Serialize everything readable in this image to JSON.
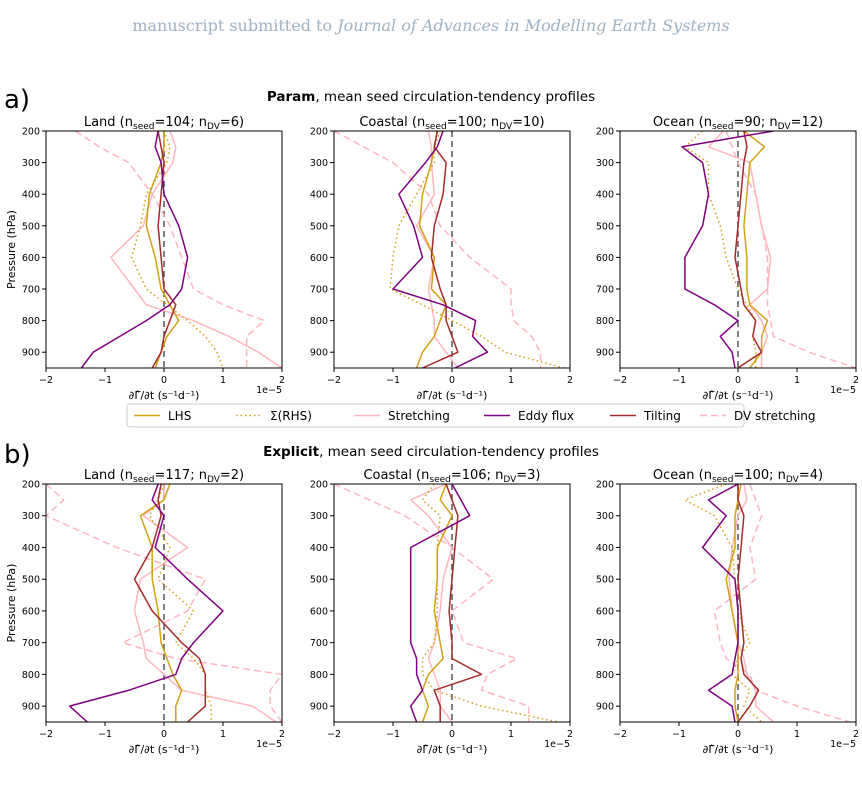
{
  "header": {
    "prefix": "manuscript submitted to ",
    "journal": "Journal of Advances in Modelling Earth Systems"
  },
  "legend": [
    {
      "name": "LHS",
      "color": "#d4a017",
      "dash": ""
    },
    {
      "name": "Σ(RHS)",
      "color": "#d4a017",
      "dash": "1.5,3"
    },
    {
      "name": "Stretching",
      "color": "#ffb6c1",
      "dash": ""
    },
    {
      "name": "Eddy flux",
      "color": "#800080",
      "dash": ""
    },
    {
      "name": "Tilting",
      "color": "#a52a2a",
      "dash": ""
    },
    {
      "name": "DV stretching",
      "color": "#ffb6c1",
      "dash": "7,4"
    }
  ],
  "chart_data": [
    {
      "row": "a",
      "row_label": "a)",
      "row_title_bold": "Param",
      "row_title_rest": ", mean seed circulation-tendency profiles",
      "panels": [
        {
          "type": "line",
          "region": "Land",
          "n_seed": "104",
          "n_dv": "6",
          "xlabel": "∂Γ̂/∂t (s⁻¹d⁻¹)",
          "ylabel": "Pressure (hPa)",
          "x_offset": "1e−5",
          "xlim": [
            -2,
            2
          ],
          "ylim": [
            950,
            200
          ],
          "xticks": [
            "−2",
            "−1",
            "0",
            "1",
            "2"
          ],
          "yticks": [
            200,
            300,
            400,
            500,
            600,
            700,
            800,
            900
          ],
          "pressure": [
            200,
            250,
            300,
            400,
            500,
            600,
            700,
            750,
            800,
            850,
            900,
            950
          ],
          "series": {
            "LHS": [
              0.0,
              0.0,
              -0.05,
              -0.25,
              -0.3,
              -0.15,
              -0.05,
              0.1,
              0.25,
              0.05,
              -0.05,
              -0.15
            ],
            "Σ(RHS)": [
              0.0,
              0.1,
              0.05,
              -0.3,
              -0.4,
              -0.55,
              -0.3,
              0.05,
              0.4,
              0.7,
              0.9,
              1.0
            ],
            "Stretching": [
              0.1,
              0.2,
              0.15,
              -0.2,
              -0.35,
              -0.9,
              -0.5,
              -0.3,
              0.5,
              1.1,
              1.6,
              2.0
            ],
            "Eddy flux": [
              -0.1,
              -0.15,
              -0.05,
              0.0,
              0.25,
              0.4,
              0.3,
              0.1,
              -0.3,
              -0.75,
              -1.2,
              -1.4
            ],
            "Tilting": [
              -0.1,
              -0.05,
              0.0,
              -0.05,
              -0.1,
              -0.05,
              0.0,
              0.2,
              0.1,
              0.0,
              -0.05,
              -0.2
            ],
            "DV stretching": [
              -1.5,
              -1.1,
              -0.6,
              -0.2,
              0.1,
              0.3,
              0.5,
              1.0,
              1.7,
              1.4,
              1.4,
              1.4
            ]
          }
        },
        {
          "type": "line",
          "region": "Coastal",
          "n_seed": "100",
          "n_dv": "10",
          "xlabel": "∂Γ̂/∂t (s⁻¹d⁻¹)",
          "ylabel": "",
          "x_offset": "",
          "xlim": [
            -2,
            2
          ],
          "ylim": [
            950,
            200
          ],
          "xticks": [
            "−2",
            "−1",
            "0",
            "1",
            "2"
          ],
          "yticks": [
            200,
            300,
            400,
            500,
            600,
            700,
            800,
            900
          ],
          "pressure": [
            200,
            250,
            300,
            400,
            500,
            600,
            700,
            750,
            800,
            850,
            900,
            950
          ],
          "series": {
            "LHS": [
              -0.25,
              -0.3,
              -0.35,
              -0.5,
              -0.55,
              -0.3,
              -0.35,
              -0.1,
              -0.2,
              -0.3,
              -0.5,
              -0.6
            ],
            "Σ(RHS)": [
              -0.2,
              -0.3,
              -0.3,
              -0.6,
              -0.9,
              -1.0,
              -1.05,
              -0.5,
              0.0,
              0.5,
              0.9,
              1.9
            ],
            "Stretching": [
              -0.4,
              -0.35,
              -0.35,
              -0.3,
              -0.6,
              -0.3,
              -0.4,
              -0.35,
              -0.3,
              -0.3,
              -0.1,
              0.1
            ],
            "Eddy flux": [
              -0.15,
              -0.25,
              -0.45,
              -0.9,
              -0.65,
              -0.5,
              -1.0,
              -0.15,
              0.4,
              0.35,
              0.6,
              0.05
            ],
            "Tilting": [
              -0.25,
              -0.3,
              -0.1,
              -0.15,
              -0.3,
              -0.35,
              -0.2,
              -0.1,
              -0.1,
              0.0,
              0.1,
              -0.5
            ],
            "DV stretching": [
              -2.0,
              -1.5,
              -1.0,
              -0.4,
              -0.2,
              0.3,
              1.0,
              1.0,
              1.05,
              1.35,
              1.5,
              1.5
            ]
          }
        },
        {
          "type": "line",
          "region": "Ocean",
          "n_seed": "90",
          "n_dv": "12",
          "xlabel": "∂Γ̂/∂t (s⁻¹d⁻¹)",
          "ylabel": "",
          "x_offset": "1e−5",
          "xlim": [
            -2,
            2
          ],
          "ylim": [
            950,
            200
          ],
          "xticks": [
            "−2",
            "−1",
            "0",
            "1",
            "2"
          ],
          "yticks": [
            200,
            300,
            400,
            500,
            600,
            700,
            800,
            900
          ],
          "pressure": [
            200,
            250,
            300,
            400,
            500,
            600,
            700,
            750,
            800,
            850,
            900,
            950
          ],
          "series": {
            "LHS": [
              0.1,
              0.45,
              0.2,
              0.15,
              0.1,
              0.15,
              0.15,
              0.2,
              0.5,
              0.4,
              0.4,
              0.2
            ],
            "Σ(RHS)": [
              -0.6,
              -0.9,
              -0.5,
              -0.5,
              -0.3,
              -0.2,
              0.0,
              0.15,
              0.3,
              0.25,
              0.3,
              0.3
            ],
            "Stretching": [
              -0.25,
              -0.5,
              0.2,
              0.3,
              0.4,
              0.55,
              0.5,
              0.2,
              0.4,
              0.5,
              0.4,
              0.4
            ],
            "Eddy flux": [
              0.6,
              -0.95,
              -0.6,
              -0.5,
              -0.6,
              -0.9,
              -0.9,
              -0.4,
              0.0,
              -0.3,
              -0.1,
              -0.05
            ],
            "Tilting": [
              0.1,
              0.15,
              0.1,
              0.05,
              0.0,
              -0.05,
              0.05,
              0.1,
              0.3,
              0.25,
              0.4,
              0.0
            ],
            "DV stretching": [
              -0.2,
              -0.1,
              0.0,
              0.3,
              0.4,
              0.5,
              0.5,
              0.5,
              0.55,
              0.6,
              1.2,
              2.0
            ]
          }
        }
      ]
    },
    {
      "row": "b",
      "row_label": "b)",
      "row_title_bold": "Explicit",
      "row_title_rest": ", mean seed circulation-tendency profiles",
      "panels": [
        {
          "type": "line",
          "region": "Land",
          "n_seed": "117",
          "n_dv": "2",
          "xlabel": "∂Γ̂/∂t (s⁻¹d⁻¹)",
          "ylabel": "Pressure (hPa)",
          "x_offset": "1e−5",
          "xlim": [
            -2,
            2
          ],
          "ylim": [
            950,
            200
          ],
          "xticks": [
            "−2",
            "−1",
            "0",
            "1",
            "2"
          ],
          "yticks": [
            200,
            300,
            400,
            500,
            600,
            700,
            800,
            900
          ],
          "pressure": [
            200,
            250,
            300,
            400,
            500,
            600,
            700,
            750,
            800,
            850,
            900,
            950
          ],
          "series": {
            "LHS": [
              0.1,
              0.0,
              -0.4,
              -0.2,
              -0.2,
              -0.1,
              -0.05,
              0.05,
              0.15,
              0.3,
              0.2,
              0.2
            ],
            "Σ(RHS)": [
              0.0,
              -0.1,
              -0.25,
              0.1,
              -0.1,
              0.5,
              0.2,
              0.5,
              0.7,
              0.7,
              0.8,
              0.8
            ],
            "Stretching": [
              0.0,
              0.0,
              -0.35,
              0.4,
              -0.4,
              -0.5,
              -0.35,
              -0.3,
              0.0,
              0.3,
              1.5,
              1.9
            ],
            "Eddy flux": [
              -0.1,
              -0.2,
              0.0,
              -0.15,
              0.4,
              1.0,
              0.5,
              0.3,
              0.2,
              -0.6,
              -1.6,
              -1.3
            ],
            "Tilting": [
              -0.05,
              -0.1,
              -0.05,
              -0.2,
              -0.5,
              -0.2,
              0.3,
              0.6,
              0.7,
              0.7,
              0.7,
              0.4
            ],
            "DV stretching": [
              -2.0,
              -1.7,
              -2.0,
              -0.8,
              0.7,
              0.4,
              -0.7,
              0.2,
              2.0,
              1.8,
              1.8,
              2.0
            ]
          }
        },
        {
          "type": "line",
          "region": "Coastal",
          "n_seed": "106",
          "n_dv": "3",
          "xlabel": "∂Γ̂/∂t (s⁻¹d⁻¹)",
          "ylabel": "",
          "x_offset": "1e−5",
          "xlim": [
            -2,
            2
          ],
          "ylim": [
            950,
            200
          ],
          "xticks": [
            "−2",
            "−1",
            "0",
            "1",
            "2"
          ],
          "yticks": [
            200,
            300,
            400,
            500,
            600,
            700,
            800,
            900
          ],
          "pressure": [
            200,
            250,
            300,
            400,
            500,
            600,
            700,
            750,
            800,
            850,
            900,
            950
          ],
          "series": {
            "LHS": [
              -0.1,
              -0.2,
              0.0,
              -0.25,
              -0.25,
              -0.3,
              -0.2,
              -0.15,
              -0.4,
              -0.5,
              -0.4,
              -0.5
            ],
            "Σ(RHS)": [
              -0.3,
              -0.5,
              -0.2,
              -0.25,
              -0.25,
              -0.25,
              -0.3,
              -0.5,
              -0.5,
              -0.3,
              0.5,
              1.8
            ],
            "Stretching": [
              -0.1,
              -0.7,
              -0.4,
              0.0,
              -0.15,
              -0.2,
              -0.3,
              -0.4,
              -0.3,
              -0.2,
              -0.2,
              0.0
            ],
            "Eddy flux": [
              0.0,
              0.15,
              0.3,
              -0.7,
              -0.7,
              -0.7,
              -0.7,
              -0.6,
              -0.6,
              -0.5,
              -0.7,
              -0.6
            ],
            "Tilting": [
              -0.1,
              0.0,
              0.1,
              0.05,
              0.0,
              -0.05,
              0.0,
              0.0,
              0.5,
              -0.3,
              -0.2,
              -0.2
            ],
            "DV stretching": [
              -2.0,
              -1.4,
              -0.8,
              0.0,
              0.7,
              0.0,
              0.2,
              1.1,
              0.6,
              0.5,
              1.3,
              1.3
            ]
          }
        },
        {
          "type": "line",
          "region": "Ocean",
          "n_seed": "100",
          "n_dv": "4",
          "xlabel": "∂Γ̂/∂t (s⁻¹d⁻¹)",
          "ylabel": "",
          "x_offset": "1e−5",
          "xlim": [
            -2,
            2
          ],
          "ylim": [
            950,
            200
          ],
          "xticks": [
            "−2",
            "−1",
            "0",
            "1",
            "2"
          ],
          "yticks": [
            200,
            300,
            400,
            500,
            600,
            700,
            800,
            900
          ],
          "pressure": [
            200,
            250,
            300,
            400,
            500,
            600,
            700,
            750,
            800,
            850,
            900,
            950
          ],
          "series": {
            "LHS": [
              0.05,
              0.0,
              -0.05,
              -0.05,
              -0.2,
              -0.1,
              0.0,
              0.0,
              0.0,
              -0.05,
              -0.05,
              0.0
            ],
            "Σ(RHS)": [
              -0.2,
              -0.9,
              -0.4,
              -0.1,
              -0.05,
              0.0,
              0.2,
              0.0,
              -0.1,
              0.2,
              0.1,
              0.4
            ],
            "Stretching": [
              0.1,
              0.15,
              0.0,
              -0.1,
              -0.15,
              -0.1,
              0.0,
              0.1,
              0.15,
              0.3,
              0.3,
              0.6
            ],
            "Eddy flux": [
              0.0,
              -0.5,
              -0.2,
              -0.6,
              -0.05,
              0.0,
              0.0,
              -0.05,
              -0.1,
              -0.5,
              -0.1,
              -0.05
            ],
            "Tilting": [
              0.0,
              0.0,
              0.1,
              0.05,
              0.0,
              0.05,
              0.1,
              0.05,
              0.1,
              0.35,
              0.2,
              0.0
            ],
            "DV stretching": [
              0.2,
              0.3,
              0.4,
              0.2,
              0.3,
              -0.4,
              -0.3,
              -0.2,
              0.2,
              0.3,
              1.0,
              1.9
            ]
          }
        }
      ]
    }
  ]
}
